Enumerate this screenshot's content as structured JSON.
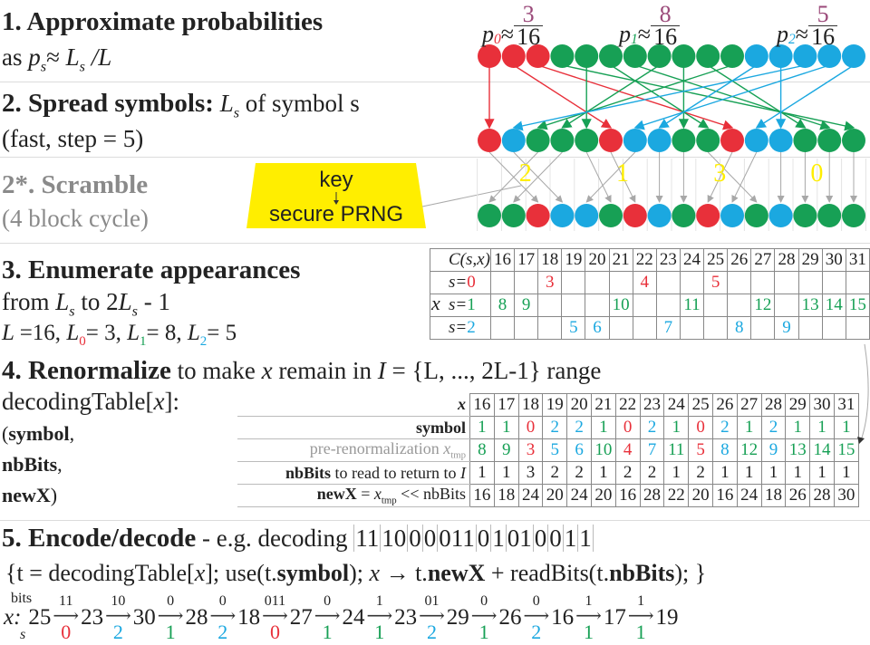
{
  "colors": {
    "red": "#e8303a",
    "green": "#17a055",
    "blue": "#1ba8e0",
    "purple": "#9b4a7a",
    "yellow": "#ffee00",
    "gray": "#a8a8a8"
  },
  "section1": {
    "title": "1. Approximate probabilities",
    "line2_prefix": "as ",
    "p": "p",
    "s": "s",
    "approx": "≈",
    "L": "L",
    "slashL": " /L"
  },
  "section2": {
    "title": "2. Spread symbols:",
    "title_rest_L": "L",
    "title_rest_s": "s",
    "title_rest": " of symbol s",
    "line2": "(fast, step = 5)"
  },
  "section2b": {
    "title_num": "2*",
    "title": ". Scramble",
    "line2": "(4 block cycle)"
  },
  "keybox": {
    "key": "key",
    "prng": "secure PRNG"
  },
  "probabilities": [
    {
      "p": "p",
      "sub": "0",
      "approx": "≈",
      "num": "3",
      "den": "16"
    },
    {
      "p": "p",
      "sub": "1",
      "approx": "≈",
      "num": "8",
      "den": "16"
    },
    {
      "p": "p",
      "sub": "2",
      "approx": "≈",
      "num": "5",
      "den": "16"
    }
  ],
  "spread": {
    "step": 5,
    "row1": [
      0,
      0,
      0,
      1,
      1,
      1,
      1,
      1,
      1,
      1,
      1,
      2,
      2,
      2,
      2,
      2
    ],
    "row2": [
      0,
      2,
      1,
      1,
      1,
      0,
      2,
      2,
      1,
      1,
      0,
      2,
      2,
      1,
      1,
      1
    ],
    "row3": [
      1,
      1,
      0,
      2,
      2,
      1,
      0,
      2,
      1,
      0,
      2,
      1,
      2,
      1,
      1,
      1
    ],
    "block_labels": [
      "2",
      "1",
      "3",
      "0"
    ]
  },
  "section3": {
    "title": "3. Enumerate appearances",
    "line2_a": "from ",
    "L": "L",
    "s": "s",
    "line2_b": " to 2",
    "line2_c": " - 1",
    "line3": [
      {
        "t": "L ",
        "c": ""
      },
      {
        "t": "=16, ",
        "c": ""
      },
      {
        "t": "L",
        "c": "",
        "sub": "0",
        "subc": "red"
      },
      {
        "t": "= 3, ",
        "c": ""
      },
      {
        "t": "L",
        "c": "",
        "sub": "1",
        "subc": "green"
      },
      {
        "t": "= 8, ",
        "c": ""
      },
      {
        "t": "L",
        "c": "",
        "sub": "2",
        "subc": "blue"
      },
      {
        "t": "= 5",
        "c": ""
      }
    ]
  },
  "ctable": {
    "corner": "C(s,x)",
    "x_label": "x",
    "columns": [
      "16",
      "17",
      "18",
      "19",
      "20",
      "21",
      "22",
      "23",
      "24",
      "25",
      "26",
      "27",
      "28",
      "29",
      "30",
      "31"
    ],
    "rows": [
      {
        "label": "s=",
        "sym": "0",
        "values": [
          "",
          "",
          "3",
          "",
          "",
          "",
          "4",
          "",
          "",
          "5",
          "",
          "",
          "",
          "",
          "",
          ""
        ]
      },
      {
        "label": "s=",
        "sym": "1",
        "values": [
          "8",
          "9",
          "",
          "",
          "",
          "10",
          "",
          "",
          "11",
          "",
          "",
          "12",
          "",
          "13",
          "14",
          "15"
        ]
      },
      {
        "label": "s=",
        "sym": "2",
        "values": [
          "",
          "",
          "",
          "5",
          "6",
          "",
          "",
          "7",
          "",
          "",
          "8",
          "",
          "9",
          "",
          "",
          ""
        ]
      }
    ]
  },
  "section4": {
    "title": "4. Renormalize",
    "rest_a": " to make ",
    "x": "x",
    "rest_b": " remain in ",
    "I": "I",
    "rest_c": " = {L, ..., 2L-1} range",
    "line2": "decodingTable[",
    "line2_x": "x",
    "line2_end": "]:",
    "line3_a": "(",
    "line3_b": "symbol",
    "line3_c": ",",
    "line4": "nbBits",
    "line4_c": ",",
    "line5": "newX",
    "line5_c": ")"
  },
  "dtable": {
    "labels": {
      "x": "x",
      "symbol": "symbol",
      "xtmp": "pre-renormalization ",
      "xtmp_x": "x",
      "xtmp_sub": "tmp",
      "nbbits_b": "nbBits",
      "nbbits_rest": " to read to return to ",
      "nbbits_I": "I",
      "newx_b": "newX",
      "newx_eq": " = ",
      "newx_x": "x",
      "newx_sub": "tmp",
      "newx_rest": " << nbBits"
    },
    "x": [
      "16",
      "17",
      "18",
      "19",
      "20",
      "21",
      "22",
      "23",
      "24",
      "25",
      "26",
      "27",
      "28",
      "29",
      "30",
      "31"
    ],
    "symbol": [
      "1",
      "1",
      "0",
      "2",
      "2",
      "1",
      "0",
      "2",
      "1",
      "0",
      "2",
      "1",
      "2",
      "1",
      "1",
      "1"
    ],
    "xtmp": [
      "8",
      "9",
      "3",
      "5",
      "6",
      "10",
      "4",
      "7",
      "11",
      "5",
      "8",
      "12",
      "9",
      "13",
      "14",
      "15"
    ],
    "nbBits": [
      "1",
      "1",
      "3",
      "2",
      "2",
      "1",
      "2",
      "2",
      "1",
      "2",
      "1",
      "1",
      "1",
      "1",
      "1",
      "1"
    ],
    "newX": [
      "16",
      "18",
      "24",
      "20",
      "24",
      "20",
      "16",
      "28",
      "22",
      "20",
      "16",
      "24",
      "18",
      "26",
      "28",
      "30"
    ]
  },
  "section5": {
    "title": "5. Encode/decode",
    "rest": " - e.g.  decoding ",
    "bit_groups": [
      "11",
      "10",
      "0",
      "0",
      "011",
      "0",
      "1",
      "01",
      "0",
      "0",
      "1",
      "1"
    ],
    "code": [
      {
        "t": "{t = decodingTable[",
        "b": false
      },
      {
        "t": "x",
        "i": true
      },
      {
        "t": "]; use(t.",
        "b": false
      },
      {
        "t": "symbol",
        "b": true
      },
      {
        "t": "); ",
        "b": false
      },
      {
        "t": "x",
        "i": true
      },
      {
        "t": " → t.",
        "b": false
      },
      {
        "t": "newX",
        "b": true
      },
      {
        "t": " + readBits(t.",
        "b": false
      },
      {
        "t": "nbBits",
        "b": true
      },
      {
        "t": "); }",
        "b": false
      }
    ]
  },
  "chain": {
    "bits_label": "bits",
    "s_label": "s",
    "x_label": "x:",
    "start": "25",
    "steps": [
      {
        "bits": "11",
        "symbol": "0",
        "next": "23"
      },
      {
        "bits": "10",
        "symbol": "2",
        "next": "30"
      },
      {
        "bits": "0",
        "symbol": "1",
        "next": "28"
      },
      {
        "bits": "0",
        "symbol": "2",
        "next": "18"
      },
      {
        "bits": "011",
        "symbol": "0",
        "next": "27"
      },
      {
        "bits": "0",
        "symbol": "1",
        "next": "24"
      },
      {
        "bits": "1",
        "symbol": "1",
        "next": "23"
      },
      {
        "bits": "01",
        "symbol": "2",
        "next": "29"
      },
      {
        "bits": "0",
        "symbol": "1",
        "next": "26"
      },
      {
        "bits": "0",
        "symbol": "2",
        "next": "16"
      },
      {
        "bits": "1",
        "symbol": "1",
        "next": "17"
      },
      {
        "bits": "1",
        "symbol": "1",
        "next": "19"
      }
    ]
  }
}
